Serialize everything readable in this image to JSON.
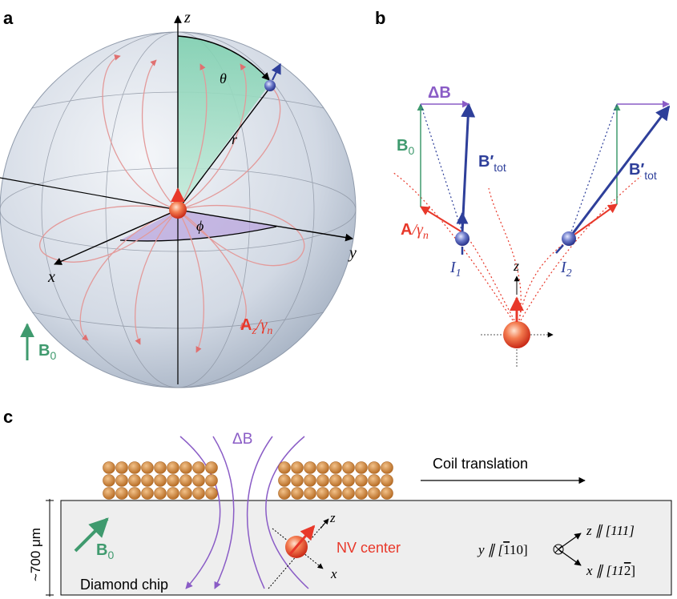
{
  "panels": {
    "a": "a",
    "b": "b",
    "c": "c"
  },
  "colors": {
    "green": "#3f9a6e",
    "red": "#e8382a",
    "blue": "#2e3f9a",
    "purple": "#8a5cc6",
    "sphere": "#c9d3e0",
    "chip": "#eeeeee",
    "coil": "#d68a3a"
  },
  "panel_a": {
    "axis_z": "z",
    "axis_y": "y",
    "axis_x": "x",
    "theta": "θ",
    "phi": "ϕ",
    "r": "r",
    "b0_main": "B",
    "b0_sub": "0",
    "az_main": "A",
    "az_sub": "z",
    "az_slash": "/γ",
    "az_gsub": "n"
  },
  "panel_b": {
    "delta_b": "ΔB",
    "b0_main": "B",
    "b0_sub": "0",
    "btot_main": "B′",
    "btot_sub": "tot",
    "btot2_main": "B′",
    "btot2_sub": "tot",
    "a_main": "A",
    "a_slash": "/γ",
    "a_sub": "n",
    "i1_main": "I",
    "i1_sub": "1",
    "i2_main": "I",
    "i2_sub": "2",
    "z": "z"
  },
  "panel_c": {
    "delta_b": "ΔB",
    "coil_translation": "Coil translation",
    "depth": "~700 μm",
    "b0_main": "B",
    "b0_sub": "0",
    "nv_center": "NV center",
    "z": "z",
    "x": "x",
    "diamond_chip": "Diamond chip",
    "y_axis": "y ∥ [",
    "y_bar": "1",
    "y_rest": "10]",
    "z_axis": "z ∥ [111]",
    "x_axis": "x ∥ [11",
    "x_bar": "2",
    "x_end": "]"
  }
}
